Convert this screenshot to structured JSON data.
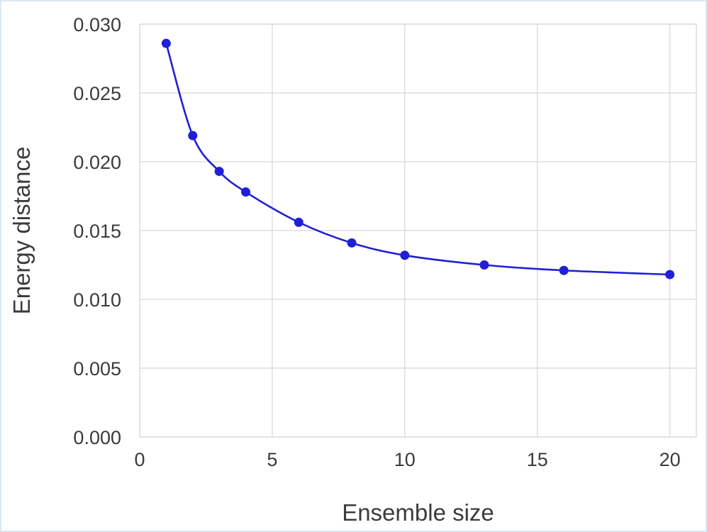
{
  "chart_data": {
    "type": "line",
    "title": "",
    "xlabel": "Ensemble size",
    "ylabel": "Energy distance",
    "xlim": [
      0,
      21
    ],
    "ylim": [
      0,
      0.03
    ],
    "xticks": [
      0,
      5,
      10,
      15,
      20
    ],
    "xtick_labels": [
      "0",
      "5",
      "10",
      "15",
      "20"
    ],
    "yticks": [
      0,
      0.005,
      0.01,
      0.015,
      0.02,
      0.025,
      0.03
    ],
    "ytick_labels": [
      "0.000",
      "0.005",
      "0.010",
      "0.015",
      "0.020",
      "0.025",
      "0.030"
    ],
    "grid": true,
    "legend": "none",
    "line_color": "#1f1fd6",
    "series": [
      {
        "x": [
          1,
          2,
          3,
          4,
          6,
          8,
          10,
          13,
          16,
          20
        ],
        "values": [
          0.0286,
          0.0219,
          0.0193,
          0.0178,
          0.0156,
          0.0141,
          0.0132,
          0.0125,
          0.0121,
          0.0118
        ]
      }
    ]
  }
}
